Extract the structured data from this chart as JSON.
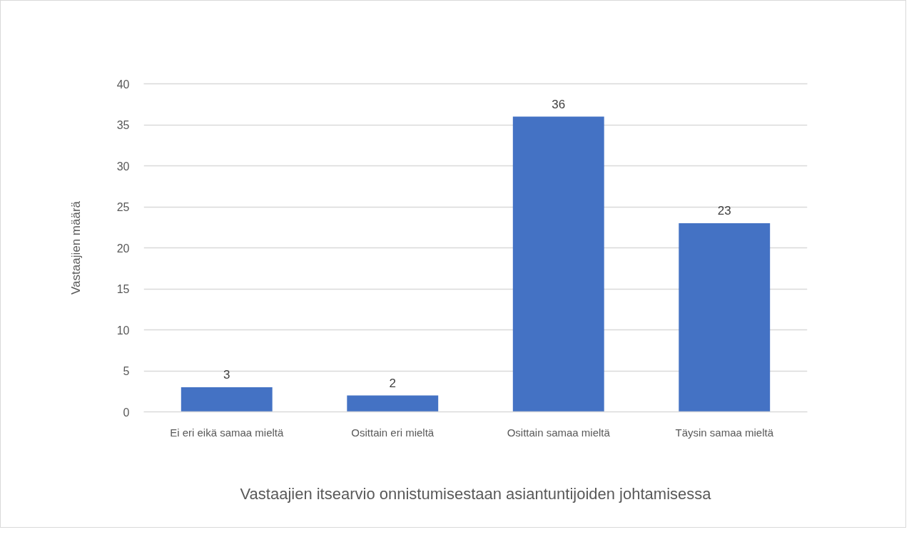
{
  "chart_data": {
    "type": "bar",
    "xlabel": "Vastaajien itsearvio onnistumisestaan asiantuntijoiden johtamisessa",
    "ylabel": "Vastaajien määrä",
    "categories": [
      "Ei eri eikä samaa mieltä",
      "Osittain eri mieltä",
      "Osittain samaa mieltä",
      "Täysin samaa mieltä"
    ],
    "values": [
      3,
      2,
      36,
      23
    ],
    "color": "#4472c4",
    "ylim": [
      0,
      40
    ],
    "yticks": [
      0,
      5,
      10,
      15,
      20,
      25,
      30,
      35,
      40
    ],
    "grid": "y",
    "data_labels": true
  }
}
